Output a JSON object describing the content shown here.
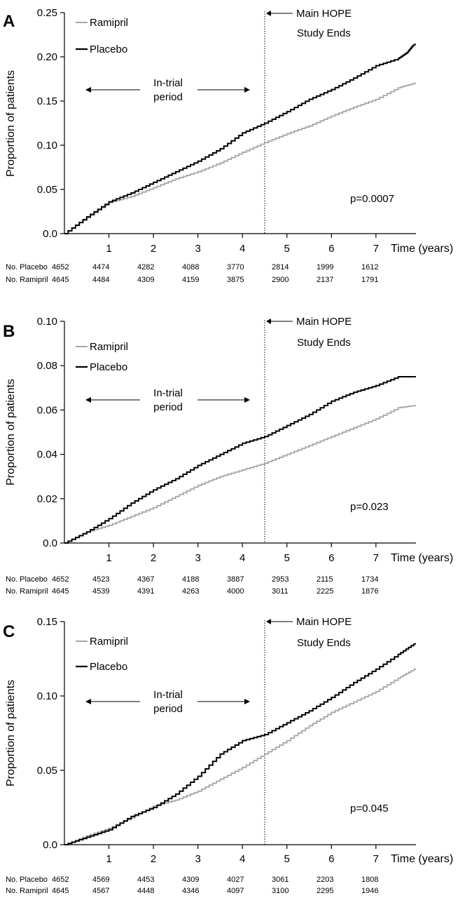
{
  "colors": {
    "ramipril": "#a6a6a6",
    "placebo": "#000000",
    "axis": "#000000"
  },
  "chart_data": [
    {
      "type": "line",
      "panel_label": "A",
      "ylabel": "Proportion of patients",
      "xlabel": "Time (years)",
      "xlim": [
        0,
        7.9
      ],
      "ylim": [
        0,
        0.25
      ],
      "yticks": [
        "0.0",
        "0.05",
        "0.10",
        "0.15",
        "0.20",
        "0.25"
      ],
      "ytick_values": [
        0,
        0.05,
        0.1,
        0.15,
        0.2,
        0.25
      ],
      "xticks": [
        "1",
        "2",
        "3",
        "4",
        "5",
        "6",
        "7"
      ],
      "xtick_values": [
        1,
        2,
        3,
        4,
        5,
        6,
        7
      ],
      "legend": [
        "Ramipril",
        "Placebo"
      ],
      "vline_x": 4.5,
      "annotation_main": "Main HOPE",
      "annotation_ends": "Study Ends",
      "in_trial_line1": "In-trial",
      "in_trial_line2": "period",
      "pvalue": "p=0.0007",
      "series": [
        {
          "name": "Ramipril",
          "x": [
            0,
            0.5,
            1,
            1.5,
            2,
            2.5,
            3,
            3.5,
            4,
            4.5,
            5,
            5.5,
            6,
            6.5,
            7,
            7.5,
            7.85
          ],
          "y": [
            0,
            0.018,
            0.035,
            0.042,
            0.052,
            0.062,
            0.07,
            0.08,
            0.092,
            0.103,
            0.113,
            0.122,
            0.133,
            0.143,
            0.152,
            0.165,
            0.17
          ]
        },
        {
          "name": "Placebo",
          "x": [
            0,
            0.5,
            1,
            1.5,
            2,
            2.5,
            3,
            3.5,
            4,
            4.5,
            5,
            5.5,
            6,
            6.5,
            7,
            7.5,
            7.7,
            7.85
          ],
          "y": [
            0,
            0.019,
            0.036,
            0.046,
            0.058,
            0.07,
            0.082,
            0.096,
            0.114,
            0.125,
            0.138,
            0.152,
            0.163,
            0.176,
            0.19,
            0.198,
            0.205,
            0.214
          ]
        }
      ],
      "risk_table": {
        "rows": [
          {
            "label": "No. Placebo",
            "values": [
              "4652",
              "4474",
              "4282",
              "4088",
              "3770",
              "2814",
              "1999",
              "1612"
            ]
          },
          {
            "label": "No. Ramipril",
            "values": [
              "4645",
              "4484",
              "4309",
              "4159",
              "3875",
              "2900",
              "2137",
              "1791"
            ]
          }
        ]
      }
    },
    {
      "type": "line",
      "panel_label": "B",
      "ylabel": "Proportion of patients",
      "xlabel": "Time (years)",
      "xlim": [
        0,
        7.9
      ],
      "ylim": [
        0,
        0.1
      ],
      "yticks": [
        "0.0",
        "0.02",
        "0.04",
        "0.06",
        "0.08",
        "0.10"
      ],
      "ytick_values": [
        0,
        0.02,
        0.04,
        0.06,
        0.08,
        0.1
      ],
      "xticks": [
        "1",
        "2",
        "3",
        "4",
        "5",
        "6",
        "7"
      ],
      "xtick_values": [
        1,
        2,
        3,
        4,
        5,
        6,
        7
      ],
      "legend": [
        "Ramipril",
        "Placebo"
      ],
      "vline_x": 4.5,
      "annotation_main": "Main HOPE",
      "annotation_ends": "Study Ends",
      "in_trial_line1": "In-trial",
      "in_trial_line2": "period",
      "pvalue": "p=0.023",
      "series": [
        {
          "name": "Ramipril",
          "x": [
            0,
            0.5,
            1,
            1.5,
            2,
            2.5,
            3,
            3.5,
            4,
            4.5,
            5,
            5.5,
            6,
            6.5,
            7,
            7.5,
            7.85
          ],
          "y": [
            0,
            0.005,
            0.008,
            0.012,
            0.016,
            0.021,
            0.026,
            0.03,
            0.033,
            0.036,
            0.04,
            0.044,
            0.048,
            0.052,
            0.056,
            0.061,
            0.062
          ]
        },
        {
          "name": "Placebo",
          "x": [
            0,
            0.5,
            1,
            1.5,
            2,
            2.5,
            3,
            3.5,
            4,
            4.5,
            5,
            5.5,
            6,
            6.5,
            7,
            7.5,
            7.85
          ],
          "y": [
            0,
            0.005,
            0.011,
            0.018,
            0.024,
            0.029,
            0.035,
            0.04,
            0.045,
            0.048,
            0.053,
            0.058,
            0.064,
            0.068,
            0.071,
            0.075,
            0.075
          ]
        }
      ],
      "risk_table": {
        "rows": [
          {
            "label": "No. Placebo",
            "values": [
              "4652",
              "4523",
              "4367",
              "4188",
              "3887",
              "2953",
              "2115",
              "1734"
            ]
          },
          {
            "label": "No. Ramipril",
            "values": [
              "4645",
              "4539",
              "4391",
              "4263",
              "4000",
              "3011",
              "2225",
              "1876"
            ]
          }
        ]
      }
    },
    {
      "type": "line",
      "panel_label": "C",
      "ylabel": "Proportion of patients",
      "xlabel": "Time (years)",
      "xlim": [
        0,
        7.9
      ],
      "ylim": [
        0,
        0.15
      ],
      "yticks": [
        "0.0",
        "0.05",
        "0.10",
        "0.15"
      ],
      "ytick_values": [
        0,
        0.05,
        0.1,
        0.15
      ],
      "xticks": [
        "1",
        "2",
        "3",
        "4",
        "5",
        "6",
        "7"
      ],
      "xtick_values": [
        1,
        2,
        3,
        4,
        5,
        6,
        7
      ],
      "legend": [
        "Ramipril",
        "Placebo"
      ],
      "vline_x": 4.5,
      "annotation_main": "Main HOPE",
      "annotation_ends": "Study Ends",
      "in_trial_line1": "In-trial",
      "in_trial_line2": "period",
      "pvalue": "p=0.045",
      "series": [
        {
          "name": "Ramipril",
          "x": [
            0,
            0.5,
            1,
            1.5,
            2,
            2.5,
            3,
            3.5,
            4,
            4.5,
            5,
            5.5,
            6,
            6.5,
            7,
            7.5,
            7.85
          ],
          "y": [
            0,
            0.006,
            0.011,
            0.018,
            0.026,
            0.03,
            0.036,
            0.044,
            0.052,
            0.061,
            0.07,
            0.08,
            0.089,
            0.096,
            0.103,
            0.112,
            0.118
          ]
        },
        {
          "name": "Placebo",
          "x": [
            0,
            0.5,
            1,
            1.5,
            2,
            2.5,
            3,
            3.5,
            4,
            4.5,
            5,
            5.5,
            6,
            6.5,
            7,
            7.5,
            7.85
          ],
          "y": [
            0,
            0.005,
            0.01,
            0.019,
            0.025,
            0.034,
            0.046,
            0.061,
            0.07,
            0.074,
            0.082,
            0.09,
            0.099,
            0.109,
            0.118,
            0.128,
            0.135
          ]
        }
      ],
      "risk_table": {
        "rows": [
          {
            "label": "No. Placebo",
            "values": [
              "4652",
              "4569",
              "4453",
              "4309",
              "4027",
              "3061",
              "2203",
              "1808"
            ]
          },
          {
            "label": "No. Ramipril",
            "values": [
              "4645",
              "4567",
              "4448",
              "4346",
              "4097",
              "3100",
              "2295",
              "1946"
            ]
          }
        ]
      }
    }
  ]
}
